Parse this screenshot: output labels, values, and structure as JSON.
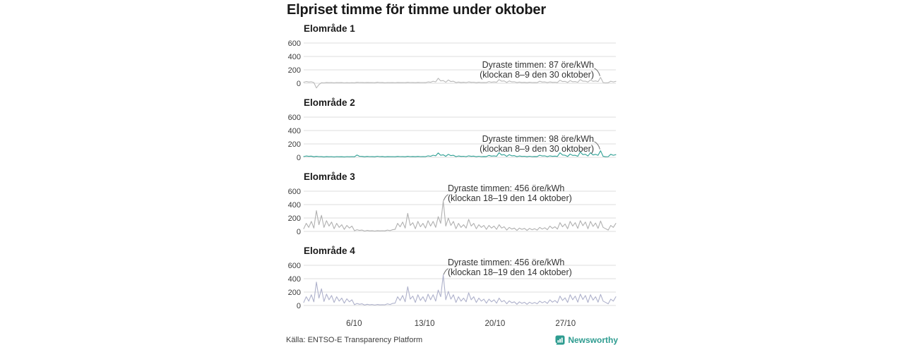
{
  "title": "Elpriset timme för timme under oktober",
  "source": "Källa: ENTSO-E Transparency Platform",
  "brand": {
    "name": "Newsworthy",
    "color": "#2E9C90"
  },
  "chart_data": {
    "type": "line",
    "unit": "öre/kWh",
    "title": "Elpriset timme för timme under oktober",
    "x_range": [
      "1 oktober",
      "31 oktober"
    ],
    "x_ticks": [
      "6/10",
      "13/10",
      "20/10",
      "27/10"
    ],
    "x_tick_days": [
      6,
      13,
      20,
      27
    ],
    "y_ticks": [
      600,
      400,
      200,
      0
    ],
    "ylim": [
      -80,
      680
    ],
    "grid": "horizontal",
    "points_per_day": 4,
    "series": [
      {
        "name": "Elområde 1",
        "color": "#b9b9b9",
        "max_value": 87,
        "annotation": [
          "Dyraste timmen: 87 öre/kWh",
          "(klockan 8–9 den 30 oktober)"
        ],
        "values": [
          15,
          25,
          18,
          22,
          10,
          -70,
          -20,
          8,
          5,
          12,
          8,
          10,
          6,
          10,
          8,
          9,
          5,
          8,
          6,
          8,
          6,
          14,
          10,
          12,
          8,
          12,
          9,
          10,
          7,
          15,
          10,
          12,
          6,
          10,
          8,
          9,
          7,
          12,
          9,
          11,
          8,
          14,
          10,
          12,
          8,
          13,
          10,
          11,
          9,
          20,
          15,
          30,
          20,
          75,
          35,
          40,
          15,
          50,
          25,
          30,
          10,
          18,
          12,
          15,
          10,
          20,
          14,
          16,
          8,
          15,
          10,
          12,
          10,
          25,
          15,
          20,
          15,
          55,
          30,
          35,
          12,
          35,
          20,
          22,
          10,
          18,
          12,
          14,
          8,
          15,
          10,
          12,
          10,
          30,
          18,
          20,
          10,
          20,
          14,
          16,
          12,
          45,
          25,
          28,
          12,
          40,
          22,
          25,
          15,
          55,
          30,
          32,
          18,
          50,
          28,
          35,
          25,
          87,
          10,
          5,
          8,
          30,
          20,
          28
        ]
      },
      {
        "name": "Elområde 2",
        "color": "#2fa094",
        "max_value": 98,
        "annotation": [
          "Dyraste timmen: 98 öre/kWh",
          "(klockan 8–9 den 30 oktober)"
        ],
        "values": [
          12,
          20,
          15,
          18,
          8,
          15,
          10,
          12,
          6,
          12,
          8,
          10,
          6,
          10,
          8,
          9,
          6,
          10,
          8,
          10,
          8,
          35,
          15,
          14,
          8,
          14,
          10,
          12,
          8,
          16,
          11,
          13,
          7,
          12,
          9,
          10,
          8,
          14,
          10,
          12,
          8,
          15,
          11,
          13,
          9,
          14,
          10,
          12,
          10,
          22,
          16,
          32,
          22,
          65,
          30,
          38,
          15,
          45,
          25,
          30,
          10,
          20,
          14,
          16,
          10,
          22,
          15,
          18,
          9,
          16,
          11,
          13,
          12,
          28,
          18,
          22,
          16,
          70,
          35,
          40,
          14,
          40,
          22,
          25,
          10,
          20,
          14,
          16,
          9,
          16,
          11,
          13,
          12,
          32,
          20,
          22,
          11,
          22,
          15,
          18,
          14,
          70,
          35,
          30,
          13,
          50,
          28,
          30,
          16,
          80,
          40,
          45,
          20,
          70,
          35,
          45,
          30,
          98,
          15,
          8,
          10,
          45,
          30,
          40
        ]
      },
      {
        "name": "Elområde 3",
        "color": "#b0b0b0",
        "max_value": 456,
        "annotation": [
          "Dyraste timmen: 456 öre/kWh",
          "(klockan 18–19 den 14 oktober)"
        ],
        "values": [
          40,
          120,
          60,
          150,
          50,
          310,
          100,
          240,
          60,
          160,
          80,
          140,
          40,
          120,
          60,
          100,
          30,
          90,
          50,
          80,
          10,
          25,
          15,
          20,
          5,
          15,
          8,
          12,
          5,
          12,
          8,
          10,
          8,
          20,
          12,
          25,
          30,
          120,
          70,
          140,
          50,
          270,
          90,
          130,
          40,
          150,
          70,
          120,
          50,
          160,
          80,
          150,
          60,
          220,
          120,
          456,
          80,
          200,
          90,
          150,
          40,
          120,
          60,
          100,
          50,
          180,
          80,
          120,
          40,
          100,
          60,
          90,
          30,
          90,
          50,
          80,
          30,
          100,
          50,
          70,
          20,
          60,
          35,
          50,
          15,
          50,
          30,
          45,
          15,
          45,
          25,
          40,
          20,
          60,
          35,
          55,
          25,
          80,
          45,
          70,
          35,
          130,
          70,
          110,
          40,
          150,
          80,
          130,
          45,
          160,
          85,
          140,
          40,
          150,
          75,
          125,
          45,
          155,
          60,
          40,
          20,
          90,
          60,
          120
        ]
      },
      {
        "name": "Elområde 4",
        "color": "#aeb1cb",
        "max_value": 456,
        "annotation": [
          "Dyraste timmen: 456 öre/kWh",
          "(klockan 18–19 den 14 oktober)"
        ],
        "values": [
          45,
          130,
          65,
          160,
          55,
          350,
          110,
          250,
          60,
          170,
          85,
          150,
          45,
          130,
          65,
          110,
          35,
          100,
          55,
          85,
          12,
          30,
          18,
          25,
          6,
          18,
          10,
          15,
          6,
          15,
          9,
          12,
          10,
          25,
          15,
          30,
          35,
          130,
          75,
          150,
          55,
          280,
          95,
          140,
          45,
          160,
          75,
          130,
          55,
          170,
          85,
          160,
          65,
          230,
          130,
          456,
          85,
          210,
          95,
          160,
          45,
          130,
          65,
          110,
          55,
          190,
          85,
          130,
          45,
          110,
          65,
          95,
          35,
          95,
          55,
          85,
          35,
          110,
          55,
          75,
          25,
          70,
          40,
          55,
          18,
          55,
          32,
          48,
          18,
          50,
          28,
          45,
          25,
          65,
          40,
          60,
          30,
          85,
          50,
          75,
          40,
          140,
          75,
          115,
          45,
          160,
          85,
          140,
          50,
          170,
          90,
          150,
          45,
          160,
          80,
          130,
          50,
          165,
          65,
          45,
          25,
          95,
          65,
          130
        ]
      }
    ]
  }
}
